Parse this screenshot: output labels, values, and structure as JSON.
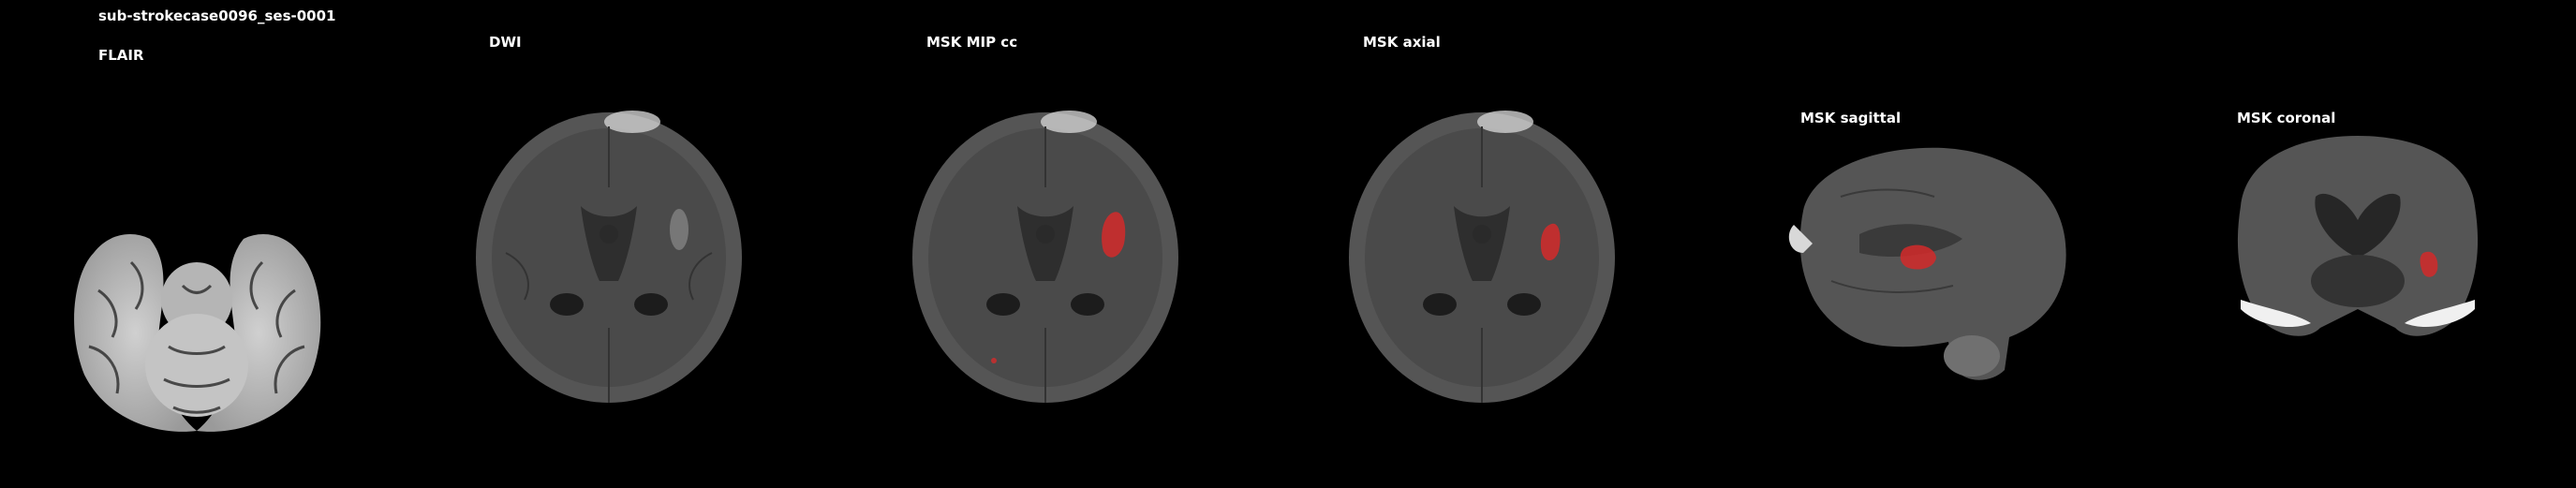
{
  "subject": "sub-strokecase0096_ses-0001",
  "panels": [
    {
      "label": "FLAIR"
    },
    {
      "label": "DWI"
    },
    {
      "label": "MSK MIP cc"
    },
    {
      "label": "MSK axial"
    },
    {
      "label": "MSK sagittal"
    },
    {
      "label": "MSK coronal"
    }
  ],
  "colors": {
    "background": "#000000",
    "lesion": "#d42a2a",
    "brain_gray": "#5a5a5a",
    "flair_gray": "#bdbdbd"
  }
}
